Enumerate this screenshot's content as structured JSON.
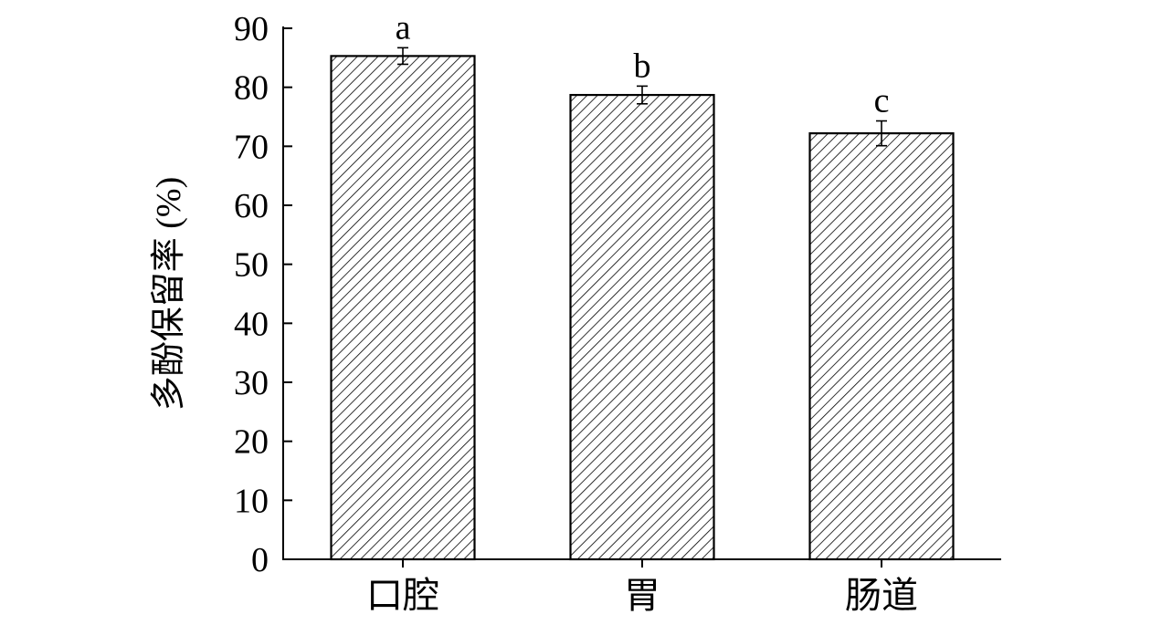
{
  "chart_data": {
    "type": "bar",
    "categories": [
      "口腔",
      "胃",
      "肠道"
    ],
    "values": [
      85.3,
      78.7,
      72.2
    ],
    "errors": [
      1.4,
      1.5,
      2.1
    ],
    "significance_labels": [
      "a",
      "b",
      "c"
    ],
    "title": "",
    "xlabel": "",
    "ylabel": "多酚保留率 (%)",
    "ylim": [
      0,
      90
    ],
    "yticks": [
      0,
      10,
      20,
      30,
      40,
      50,
      60,
      70,
      80,
      90
    ],
    "yticks_labels": [
      "0",
      "10",
      "20",
      "30",
      "40",
      "50",
      "60",
      "70",
      "80",
      "90"
    ],
    "bar_fill": "diagonal-hatch",
    "grid": false,
    "legend": "none"
  }
}
